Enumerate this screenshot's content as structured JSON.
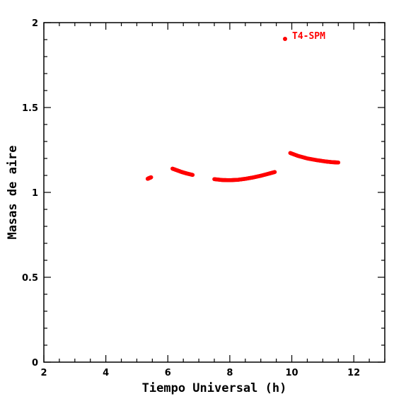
{
  "chart_data": {
    "type": "scatter",
    "title": "",
    "xlabel": "Tiempo Universal (h)",
    "ylabel": "Masas de aire",
    "xlim": [
      2,
      13
    ],
    "ylim": [
      0,
      2
    ],
    "x_ticks": [
      2,
      4,
      6,
      8,
      10,
      12
    ],
    "y_ticks": [
      0,
      0.5,
      1,
      1.5,
      2
    ],
    "x_tick_labels": [
      "2",
      "4",
      "6",
      "8",
      "10",
      "12"
    ],
    "y_tick_labels": [
      "0",
      "0.5",
      "1",
      "1.5",
      "2"
    ],
    "grid": false,
    "legend": {
      "position": "top-right",
      "entries": [
        "T4-SPM"
      ]
    },
    "series": [
      {
        "name": "T4-SPM",
        "color": "#ff0000",
        "segments": [
          {
            "x": [
              5.35,
              5.38,
              5.42,
              5.46
            ],
            "y": [
              1.08,
              1.083,
              1.086,
              1.089
            ]
          },
          {
            "x": [
              6.15,
              6.3,
              6.45,
              6.6,
              6.8
            ],
            "y": [
              1.14,
              1.13,
              1.12,
              1.112,
              1.103
            ]
          },
          {
            "x": [
              7.5,
              7.75,
              8.0,
              8.25,
              8.5,
              8.75,
              9.0,
              9.25,
              9.45
            ],
            "y": [
              1.078,
              1.073,
              1.072,
              1.074,
              1.08,
              1.088,
              1.098,
              1.11,
              1.12
            ]
          },
          {
            "x": [
              9.95,
              10.2,
              10.5,
              10.8,
              11.1,
              11.3,
              11.5
            ],
            "y": [
              1.232,
              1.215,
              1.2,
              1.19,
              1.182,
              1.178,
              1.176
            ]
          }
        ]
      }
    ]
  }
}
